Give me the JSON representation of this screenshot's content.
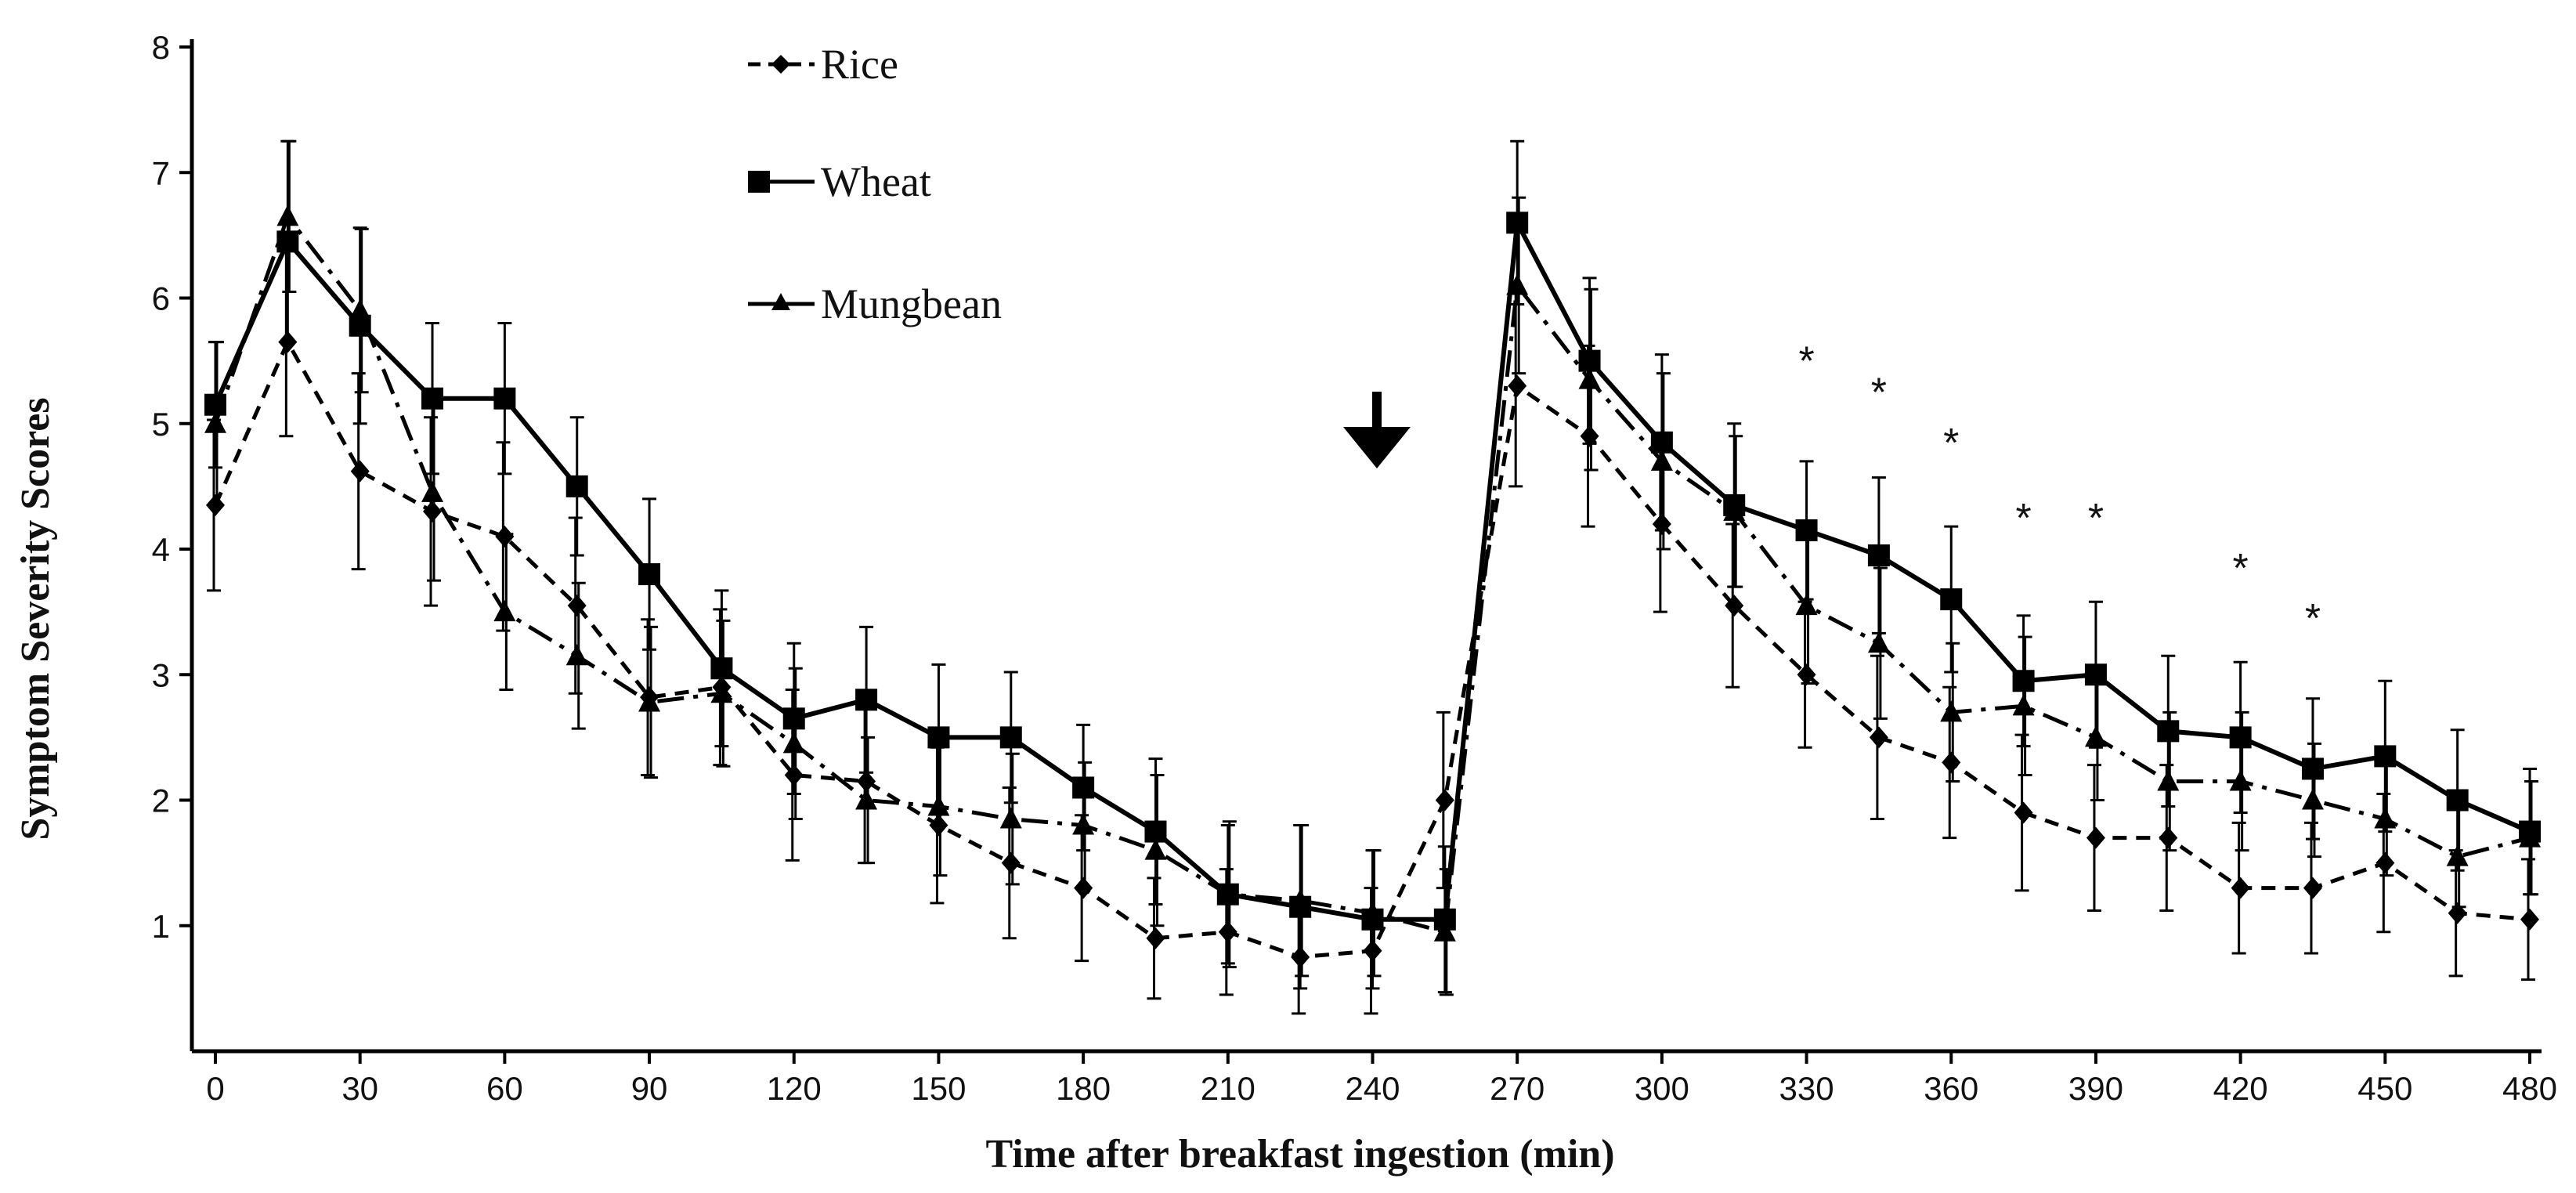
{
  "chart_data": {
    "type": "line",
    "title": "",
    "xlabel": "Time after breakfast ingestion (min)",
    "ylabel": "Symptom Severity Scores",
    "xlim": [
      0,
      480
    ],
    "ylim": [
      0,
      8
    ],
    "xticks": [
      0,
      30,
      60,
      90,
      120,
      150,
      180,
      210,
      240,
      270,
      300,
      330,
      360,
      390,
      420,
      450,
      480
    ],
    "yticks": [
      1,
      2,
      3,
      4,
      5,
      6,
      7,
      8
    ],
    "grid": false,
    "legend_position": "top-center",
    "x": [
      0,
      15,
      30,
      45,
      60,
      75,
      90,
      105,
      120,
      135,
      150,
      165,
      180,
      195,
      210,
      225,
      240,
      255,
      270,
      285,
      300,
      315,
      330,
      345,
      360,
      375,
      390,
      405,
      420,
      435,
      450,
      465,
      480
    ],
    "series": [
      {
        "name": "Rice",
        "marker": "diamond",
        "line": "dashed",
        "values": [
          4.35,
          5.65,
          4.62,
          4.3,
          4.1,
          3.55,
          2.82,
          2.9,
          2.2,
          2.15,
          1.8,
          1.5,
          1.3,
          0.9,
          0.95,
          0.75,
          0.8,
          2.0,
          5.3,
          4.9,
          4.2,
          3.55,
          3.0,
          2.5,
          2.3,
          1.9,
          1.7,
          1.7,
          1.3,
          1.3,
          1.5,
          1.1,
          1.05
        ],
        "errors": [
          0.68,
          0.75,
          0.78,
          0.75,
          0.75,
          0.7,
          0.62,
          0.62,
          0.68,
          0.65,
          0.62,
          0.6,
          0.58,
          0.48,
          0.5,
          0.45,
          0.5,
          0.7,
          0.8,
          0.72,
          0.7,
          0.65,
          0.58,
          0.65,
          0.6,
          0.62,
          0.58,
          0.58,
          0.52,
          0.52,
          0.55,
          0.5,
          0.48
        ]
      },
      {
        "name": "Wheat",
        "marker": "square",
        "line": "solid",
        "values": [
          5.15,
          6.45,
          5.78,
          5.2,
          5.2,
          4.5,
          3.8,
          3.05,
          2.65,
          2.8,
          2.5,
          2.5,
          2.1,
          1.75,
          1.25,
          1.15,
          1.05,
          1.05,
          6.6,
          5.5,
          4.85,
          4.35,
          4.15,
          3.95,
          3.6,
          2.95,
          3.0,
          2.55,
          2.5,
          2.25,
          2.35,
          2.0,
          1.75
        ]
      },
      {
        "name": "Mungbean",
        "marker": "triangle",
        "line": "dash-dot",
        "values": [
          5.0,
          6.65,
          5.9,
          4.45,
          3.5,
          3.15,
          2.78,
          2.85,
          2.45,
          2.0,
          1.95,
          1.85,
          1.8,
          1.6,
          1.25,
          1.2,
          1.1,
          0.95,
          6.1,
          5.35,
          4.7,
          4.3,
          3.55,
          3.25,
          2.7,
          2.75,
          2.5,
          2.15,
          2.15,
          2.0,
          1.85,
          1.55,
          1.7
        ],
        "errors": [
          0.65,
          0.6,
          0.65,
          0.7,
          0.62,
          0.58,
          0.6,
          0.58,
          0.6,
          0.5,
          0.55,
          0.52,
          0.5,
          0.6,
          0.58,
          0.6,
          0.5,
          0.5,
          0.7,
          0.72,
          0.7,
          0.6,
          0.62,
          0.6,
          0.55,
          0.55,
          0.5,
          0.55,
          0.55,
          0.45,
          0.45,
          0.4,
          0.45
        ]
      }
    ],
    "wheat_errors": [
      0.5,
      0.8,
      0.78,
      0.6,
      0.6,
      0.55,
      0.6,
      0.62,
      0.6,
      0.58,
      0.58,
      0.52,
      0.5,
      0.58,
      0.55,
      0.65,
      0.55,
      0.58,
      0.65,
      0.66,
      0.7,
      0.65,
      0.55,
      0.62,
      0.58,
      0.52,
      0.58,
      0.6,
      0.6,
      0.56,
      0.6,
      0.56,
      0.5
    ],
    "arrow_marker_at_x": 240,
    "significance": {
      "symbol": "*",
      "x": [
        330,
        345,
        360,
        375,
        390,
        420,
        435
      ],
      "y": [
        5.5,
        5.25,
        4.85,
        4.25,
        4.25,
        3.85,
        3.45
      ]
    }
  }
}
